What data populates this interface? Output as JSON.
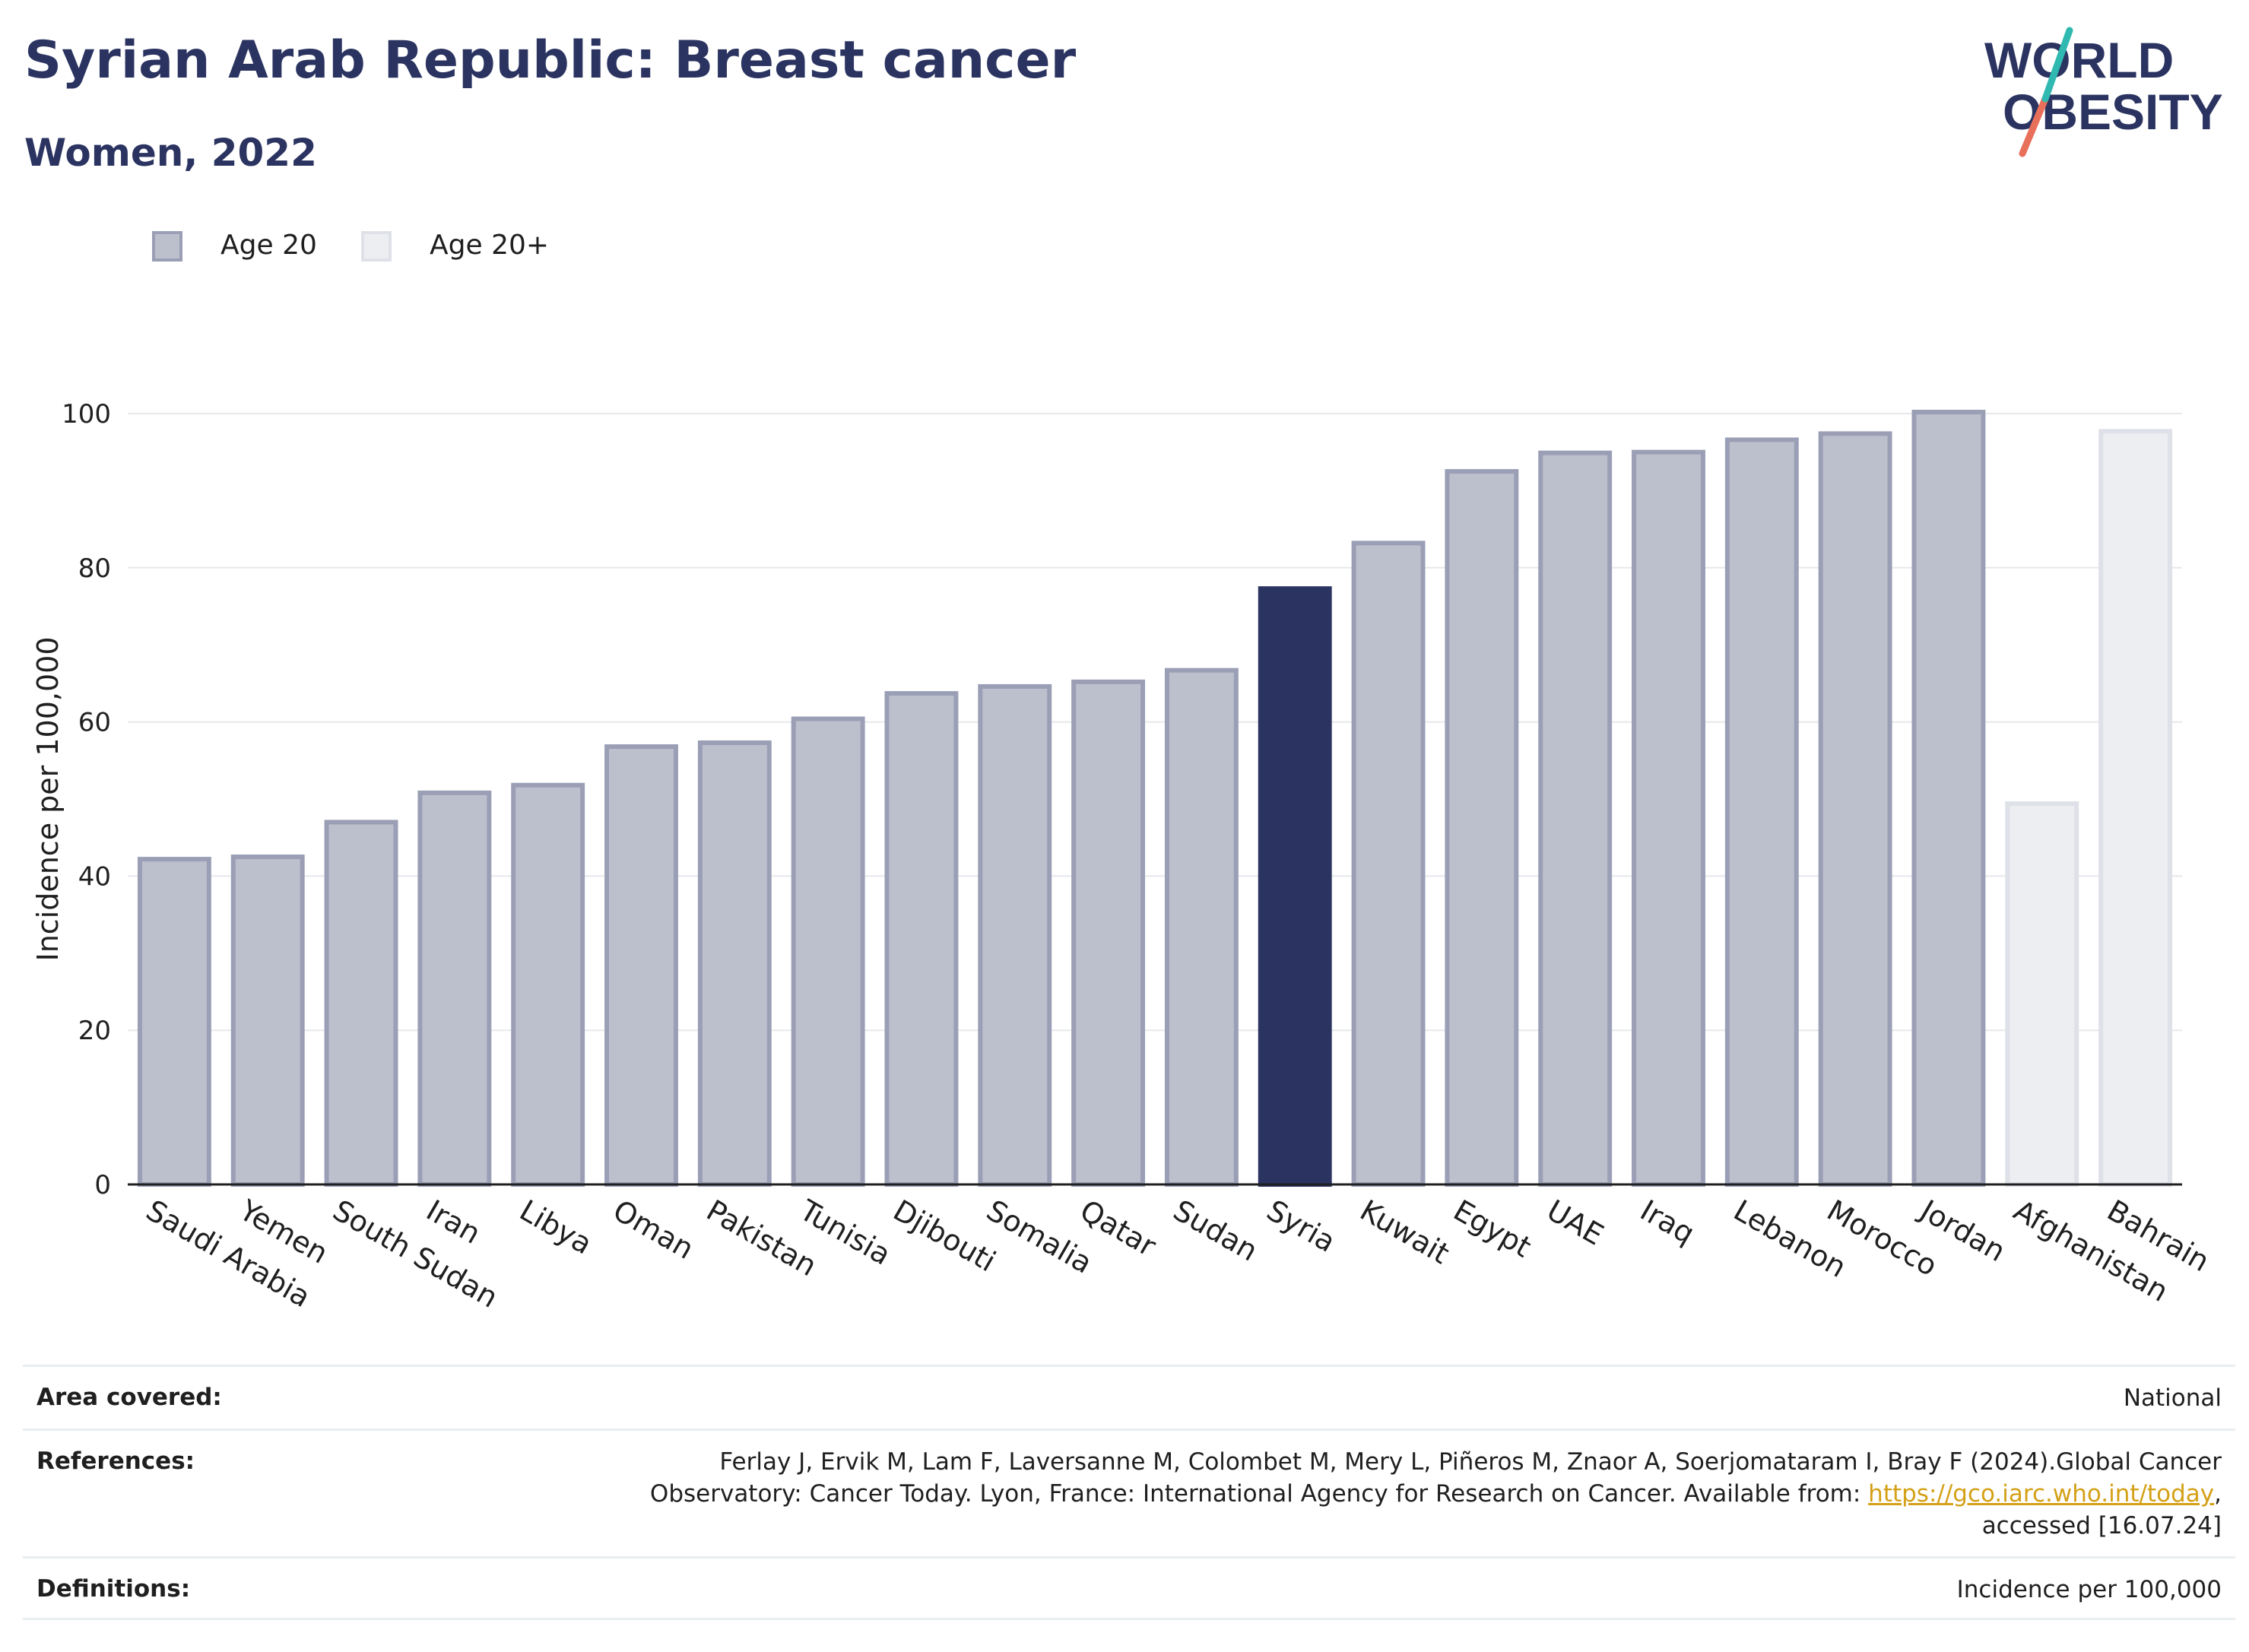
{
  "header": {
    "title": "Syrian Arab Republic: Breast cancer",
    "subtitle": "Women, 2022"
  },
  "logo": {
    "line1": "WORLD",
    "line2": "OBESITY"
  },
  "legend": [
    {
      "label": "Age 20",
      "color": "#bcc0cd",
      "border": "#9a9fb6"
    },
    {
      "label": "Age 20+",
      "color": "#eceef2",
      "border": "#dfe1e8"
    }
  ],
  "chart_data": {
    "type": "bar",
    "ylabel": "Incidence per 100,000",
    "ylim": [
      0,
      105
    ],
    "yticks": [
      0,
      20,
      40,
      60,
      80,
      100
    ],
    "grid": true,
    "highlight_color": "#2b3461",
    "categories": [
      "Saudi Arabia",
      "Yemen",
      "South Sudan",
      "Iran",
      "Libya",
      "Oman",
      "Pakistan",
      "Tunisia",
      "Djibouti",
      "Somalia",
      "Qatar",
      "Sudan",
      "Syria",
      "Kuwait",
      "Egypt",
      "UAE",
      "Iraq",
      "Lebanon",
      "Morocco",
      "Jordan",
      "Afghanistan",
      "Bahrain"
    ],
    "values": [
      42.2,
      42.5,
      47.0,
      50.8,
      51.8,
      56.8,
      57.3,
      60.4,
      63.7,
      64.6,
      65.2,
      66.7,
      77.3,
      83.2,
      92.5,
      94.9,
      95.0,
      96.6,
      97.4,
      100.2,
      49.4,
      97.7
    ],
    "series_of": [
      "Age 20",
      "Age 20",
      "Age 20",
      "Age 20",
      "Age 20",
      "Age 20",
      "Age 20",
      "Age 20",
      "Age 20",
      "Age 20",
      "Age 20",
      "Age 20",
      "Age 20",
      "Age 20",
      "Age 20",
      "Age 20",
      "Age 20",
      "Age 20",
      "Age 20",
      "Age 20",
      "Age 20+",
      "Age 20+"
    ],
    "highlight": "Syria"
  },
  "info": {
    "area_key": "Area covered:",
    "area_val": "National",
    "ref_key": "References:",
    "ref_line1": "Ferlay J, Ervik M, Lam F, Laversanne M, Colombet M, Mery L, Piñeros M, Znaor A, Soerjomataram I, Bray F (2024).Global Cancer",
    "ref_line2_pre": "Observatory: Cancer Today. Lyon, France: International Agency for Research on Cancer. Available from: ",
    "ref_link": "https://gco.iarc.who.int/today",
    "ref_line2_post": ",",
    "ref_line3": "accessed [16.07.24]",
    "def_key": "Definitions:",
    "def_val": "Incidence per 100,000"
  }
}
